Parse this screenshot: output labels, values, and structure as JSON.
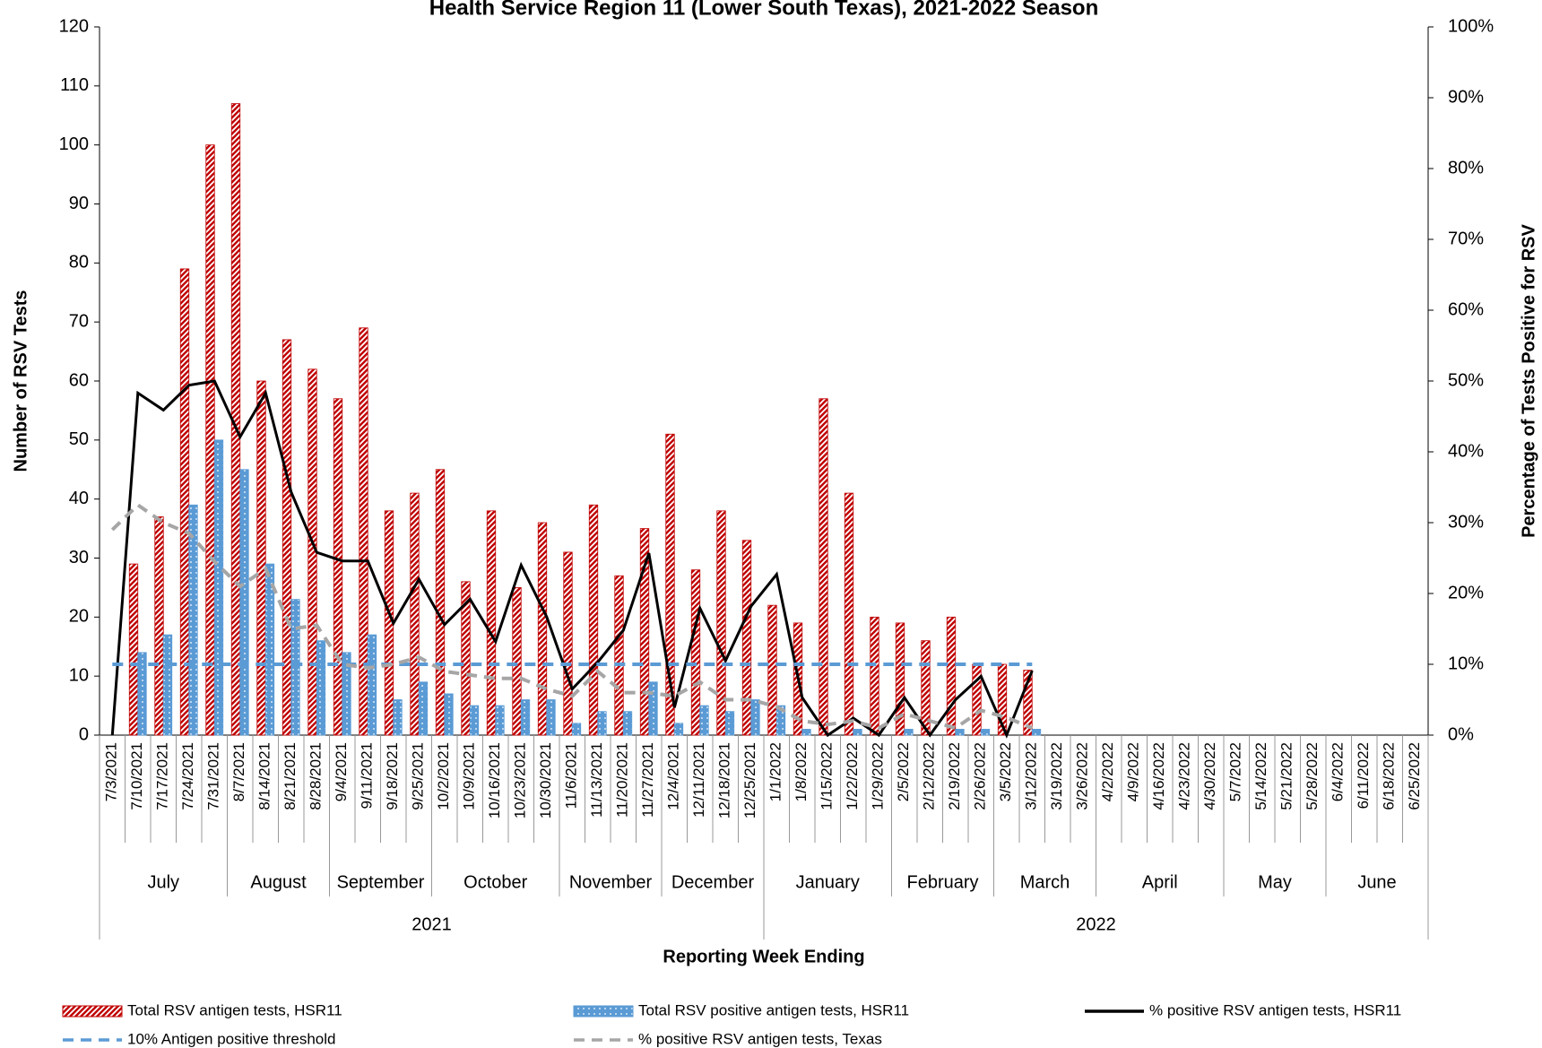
{
  "chart_data": {
    "type": "bar-line",
    "title": "Health Service Region 11 (Lower South Texas), 2021-2022 Season",
    "y_label": "Number of RSV Tests",
    "y2_label": "Percentage of Tests Positive for RSV",
    "x_label": "Reporting Week Ending",
    "categories": [
      "7/3/2021",
      "7/10/2021",
      "7/17/2021",
      "7/24/2021",
      "7/31/2021",
      "8/7/2021",
      "8/14/2021",
      "8/21/2021",
      "8/28/2021",
      "9/4/2021",
      "9/11/2021",
      "9/18/2021",
      "9/25/2021",
      "10/2/2021",
      "10/9/2021",
      "10/16/2021",
      "10/23/2021",
      "10/30/2021",
      "11/6/2021",
      "11/13/2021",
      "11/20/2021",
      "11/27/2021",
      "12/4/2021",
      "12/11/2021",
      "12/18/2021",
      "12/25/2021",
      "1/1/2022",
      "1/8/2022",
      "1/15/2022",
      "1/22/2022",
      "1/29/2022",
      "2/5/2022",
      "2/12/2022",
      "2/19/2022",
      "2/26/2022",
      "3/5/2022",
      "3/12/2022",
      "3/19/2022",
      "3/26/2022",
      "4/2/2022",
      "4/9/2022",
      "4/16/2022",
      "4/23/2022",
      "4/30/2022",
      "5/7/2022",
      "5/14/2022",
      "5/21/2022",
      "5/28/2022",
      "6/4/2022",
      "6/11/2022",
      "6/18/2022",
      "6/25/2022"
    ],
    "months": [
      "July",
      "August",
      "September",
      "October",
      "November",
      "December",
      "January",
      "February",
      "March",
      "April",
      "May",
      "June"
    ],
    "years": [
      "2021",
      "2022"
    ],
    "ylim": [
      0,
      120
    ],
    "yticks": [
      0,
      10,
      20,
      30,
      40,
      50,
      60,
      70,
      80,
      90,
      100,
      110,
      120
    ],
    "y2lim": [
      0,
      100
    ],
    "y2ticks": [
      {
        "value": 0,
        "label": "0%"
      },
      {
        "value": 10,
        "label": "10%"
      },
      {
        "value": 20,
        "label": "20%"
      },
      {
        "value": 30,
        "label": "30%"
      },
      {
        "value": 40,
        "label": "40%"
      },
      {
        "value": 50,
        "label": "50%"
      },
      {
        "value": 60,
        "label": "60%"
      },
      {
        "value": 70,
        "label": "70%"
      },
      {
        "value": 80,
        "label": "80%"
      },
      {
        "value": 90,
        "label": "90%"
      },
      {
        "value": 100,
        "label": "100%"
      }
    ],
    "grid": false,
    "series": [
      {
        "name": "Total RSV antigen tests, HSR11",
        "color": "#c00000",
        "mark": "bar",
        "pattern": "stripes",
        "values": [
          0,
          29,
          37,
          79,
          100,
          107,
          60,
          67,
          62,
          57,
          69,
          38,
          41,
          45,
          26,
          38,
          25,
          36,
          31,
          39,
          27,
          35,
          51,
          28,
          38,
          33,
          22,
          19,
          57,
          41,
          20,
          19,
          16,
          20,
          12,
          12,
          11,
          null,
          null,
          null,
          null,
          null,
          null,
          null,
          null,
          null,
          null,
          null,
          null,
          null,
          null,
          null
        ]
      },
      {
        "name": "Total RSV positive antigen tests, HSR11",
        "color": "#5b9bd5",
        "mark": "bar",
        "pattern": "dots",
        "values": [
          0,
          14,
          17,
          39,
          50,
          45,
          29,
          23,
          16,
          14,
          17,
          6,
          9,
          7,
          5,
          5,
          6,
          6,
          2,
          4,
          4,
          9,
          2,
          5,
          4,
          6,
          5,
          1,
          0,
          1,
          0,
          1,
          0,
          1,
          1,
          0,
          1,
          null,
          null,
          null,
          null,
          null,
          null,
          null,
          null,
          null,
          null,
          null,
          null,
          null,
          null,
          null
        ]
      },
      {
        "name": "% positive RSV antigen tests, HSR11",
        "color": "#000000",
        "mark": "line",
        "line_style": "solid",
        "axis": "y2",
        "values": [
          0,
          48.3,
          45.9,
          49.4,
          50,
          42.1,
          48.3,
          34.3,
          25.8,
          24.6,
          24.6,
          15.8,
          22,
          15.6,
          19.2,
          13.2,
          24,
          16.7,
          6.5,
          10.3,
          14.8,
          25.7,
          3.9,
          17.9,
          10.5,
          18.2,
          22.7,
          5.3,
          0,
          2.4,
          0,
          5.3,
          0,
          5,
          8.3,
          0,
          9.1,
          null,
          null,
          null,
          null,
          null,
          null,
          null,
          null,
          null,
          null,
          null,
          null,
          null,
          null,
          null
        ]
      },
      {
        "name": "10% Antigen positive threshold",
        "color": "#5b9bd5",
        "mark": "line",
        "line_style": "dashed",
        "axis": "y2",
        "values": [
          10,
          10,
          10,
          10,
          10,
          10,
          10,
          10,
          10,
          10,
          10,
          10,
          10,
          10,
          10,
          10,
          10,
          10,
          10,
          10,
          10,
          10,
          10,
          10,
          10,
          10,
          10,
          10,
          10,
          10,
          10,
          10,
          10,
          10,
          10,
          10,
          10,
          null,
          null,
          null,
          null,
          null,
          null,
          null,
          null,
          null,
          null,
          null,
          null,
          null,
          null,
          null
        ]
      },
      {
        "name": "% positive RSV antigen tests, Texas",
        "color": "#a6a6a6",
        "mark": "line",
        "line_style": "dashed",
        "axis": "y2",
        "values": [
          29,
          32.5,
          30,
          28.5,
          24.5,
          21,
          23.5,
          15,
          15.5,
          10,
          9.5,
          10,
          11,
          9,
          8.5,
          8,
          8,
          6.5,
          5.5,
          9,
          6,
          6,
          5.5,
          7.5,
          5,
          5,
          4,
          2,
          1.5,
          2,
          1,
          3,
          2,
          1,
          3.5,
          2.5,
          1,
          null,
          null,
          null,
          null,
          null,
          null,
          null,
          null,
          null,
          null,
          null,
          null,
          null,
          null,
          null
        ]
      }
    ]
  }
}
